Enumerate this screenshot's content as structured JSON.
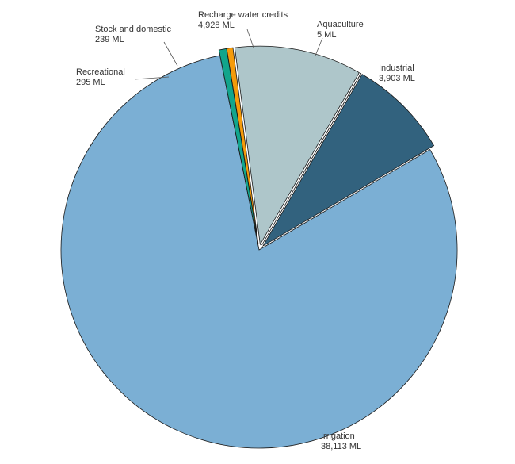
{
  "chart_data": {
    "type": "pie",
    "title": "",
    "unit": "ML",
    "slices": [
      {
        "name": "Aquaculture",
        "value": 5,
        "value_label": "5 ML",
        "color": "#2a2a2a",
        "exploded": true
      },
      {
        "name": "Industrial",
        "value": 3903,
        "value_label": "3,903 ML",
        "color": "#32627e",
        "exploded": true
      },
      {
        "name": "Irrigation",
        "value": 38113,
        "value_label": "38,113 ML",
        "color": "#7bafd4",
        "exploded": false
      },
      {
        "name": "Recreational",
        "value": 295,
        "value_label": "295 ML",
        "color": "#12a58c",
        "exploded": true
      },
      {
        "name": "Stock and domestic",
        "value": 239,
        "value_label": "239 ML",
        "color": "#f59b0a",
        "exploded": true
      },
      {
        "name": "Recharge water credits",
        "value": 4928,
        "value_label": "4,928 ML",
        "color": "#aec6ca",
        "exploded": true
      }
    ]
  }
}
